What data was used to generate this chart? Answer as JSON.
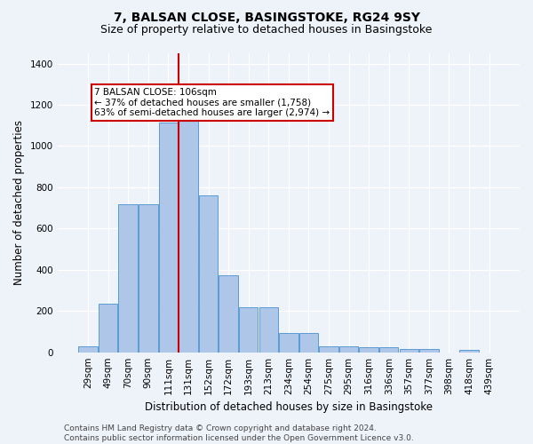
{
  "title1": "7, BALSAN CLOSE, BASINGSTOKE, RG24 9SY",
  "title2": "Size of property relative to detached houses in Basingstoke",
  "xlabel": "Distribution of detached houses by size in Basingstoke",
  "ylabel": "Number of detached properties",
  "categories": [
    "29sqm",
    "49sqm",
    "70sqm",
    "90sqm",
    "111sqm",
    "131sqm",
    "152sqm",
    "172sqm",
    "193sqm",
    "213sqm",
    "234sqm",
    "254sqm",
    "275sqm",
    "295sqm",
    "316sqm",
    "336sqm",
    "357sqm",
    "377sqm",
    "398sqm",
    "418sqm",
    "439sqm"
  ],
  "values": [
    30,
    235,
    720,
    720,
    1115,
    1130,
    760,
    375,
    220,
    220,
    95,
    95,
    27,
    27,
    23,
    23,
    18,
    18,
    0,
    10,
    0
  ],
  "bar_color": "#aec6e8",
  "bar_edge_color": "#5b9bd5",
  "vline_color": "#cc0000",
  "vline_x": 4.5,
  "annotation_title": "7 BALSAN CLOSE: 106sqm",
  "annotation_line1": "← 37% of detached houses are smaller (1,758)",
  "annotation_line2": "63% of semi-detached houses are larger (2,974) →",
  "annotation_box_color": "#ffffff",
  "annotation_box_edge": "#cc0000",
  "ylim": [
    0,
    1450
  ],
  "yticks": [
    0,
    200,
    400,
    600,
    800,
    1000,
    1200,
    1400
  ],
  "footer1": "Contains HM Land Registry data © Crown copyright and database right 2024.",
  "footer2": "Contains public sector information licensed under the Open Government Licence v3.0.",
  "bg_color": "#eef2f9",
  "grid_color": "#ffffff",
  "title1_fontsize": 10,
  "title2_fontsize": 9,
  "xlabel_fontsize": 8.5,
  "ylabel_fontsize": 8.5,
  "tick_fontsize": 7.5,
  "footer_fontsize": 6.5,
  "ann_fontsize": 7.5
}
